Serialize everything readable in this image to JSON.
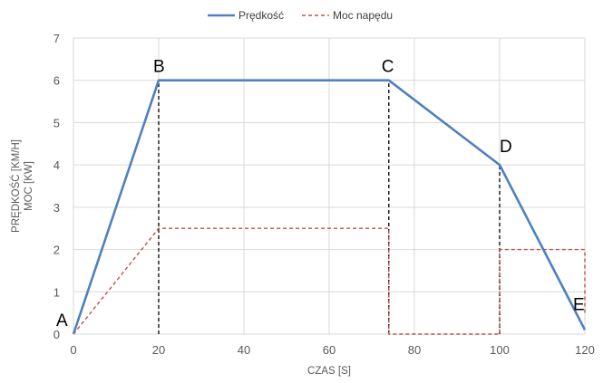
{
  "chart_data": {
    "type": "line",
    "title": "",
    "xlabel": "CZAS [S]",
    "ylabel_lines": [
      "PRĘDKOŚĆ [KM/H]",
      "MOC [KW]"
    ],
    "xlim": [
      0,
      120
    ],
    "ylim": [
      0,
      7
    ],
    "x_ticks": [
      0,
      20,
      40,
      60,
      80,
      100,
      120
    ],
    "y_ticks": [
      0,
      1,
      2,
      3,
      4,
      5,
      6,
      7
    ],
    "grid": "both",
    "legend_position": "top-center",
    "series": [
      {
        "name": "Prędkość",
        "style": "solid",
        "color": "#4f81bd",
        "points": [
          [
            0,
            0
          ],
          [
            20,
            6
          ],
          [
            74,
            6
          ],
          [
            100,
            4
          ],
          [
            120,
            0.1
          ]
        ]
      },
      {
        "name": "Moc napędu",
        "style": "dashed",
        "color": "#c0504d",
        "points": [
          [
            0,
            0
          ],
          [
            20,
            2.5
          ],
          [
            74,
            2.5
          ],
          [
            74,
            0
          ],
          [
            100,
            0
          ],
          [
            100,
            2
          ],
          [
            120,
            2
          ],
          [
            120,
            0.5
          ]
        ]
      }
    ],
    "reference_lines": [
      {
        "x": 20,
        "y_from": 0,
        "y_to": 6
      },
      {
        "x": 74,
        "y_from": 0,
        "y_to": 6
      },
      {
        "x": 100,
        "y_from": 0,
        "y_to": 4
      }
    ],
    "point_labels": [
      {
        "text": "A",
        "x": 0,
        "y": 0
      },
      {
        "text": "B",
        "x": 20,
        "y": 6
      },
      {
        "text": "C",
        "x": 74,
        "y": 6
      },
      {
        "text": "D",
        "x": 100,
        "y": 4
      },
      {
        "text": "E",
        "x": 120,
        "y": 0.1
      }
    ]
  }
}
